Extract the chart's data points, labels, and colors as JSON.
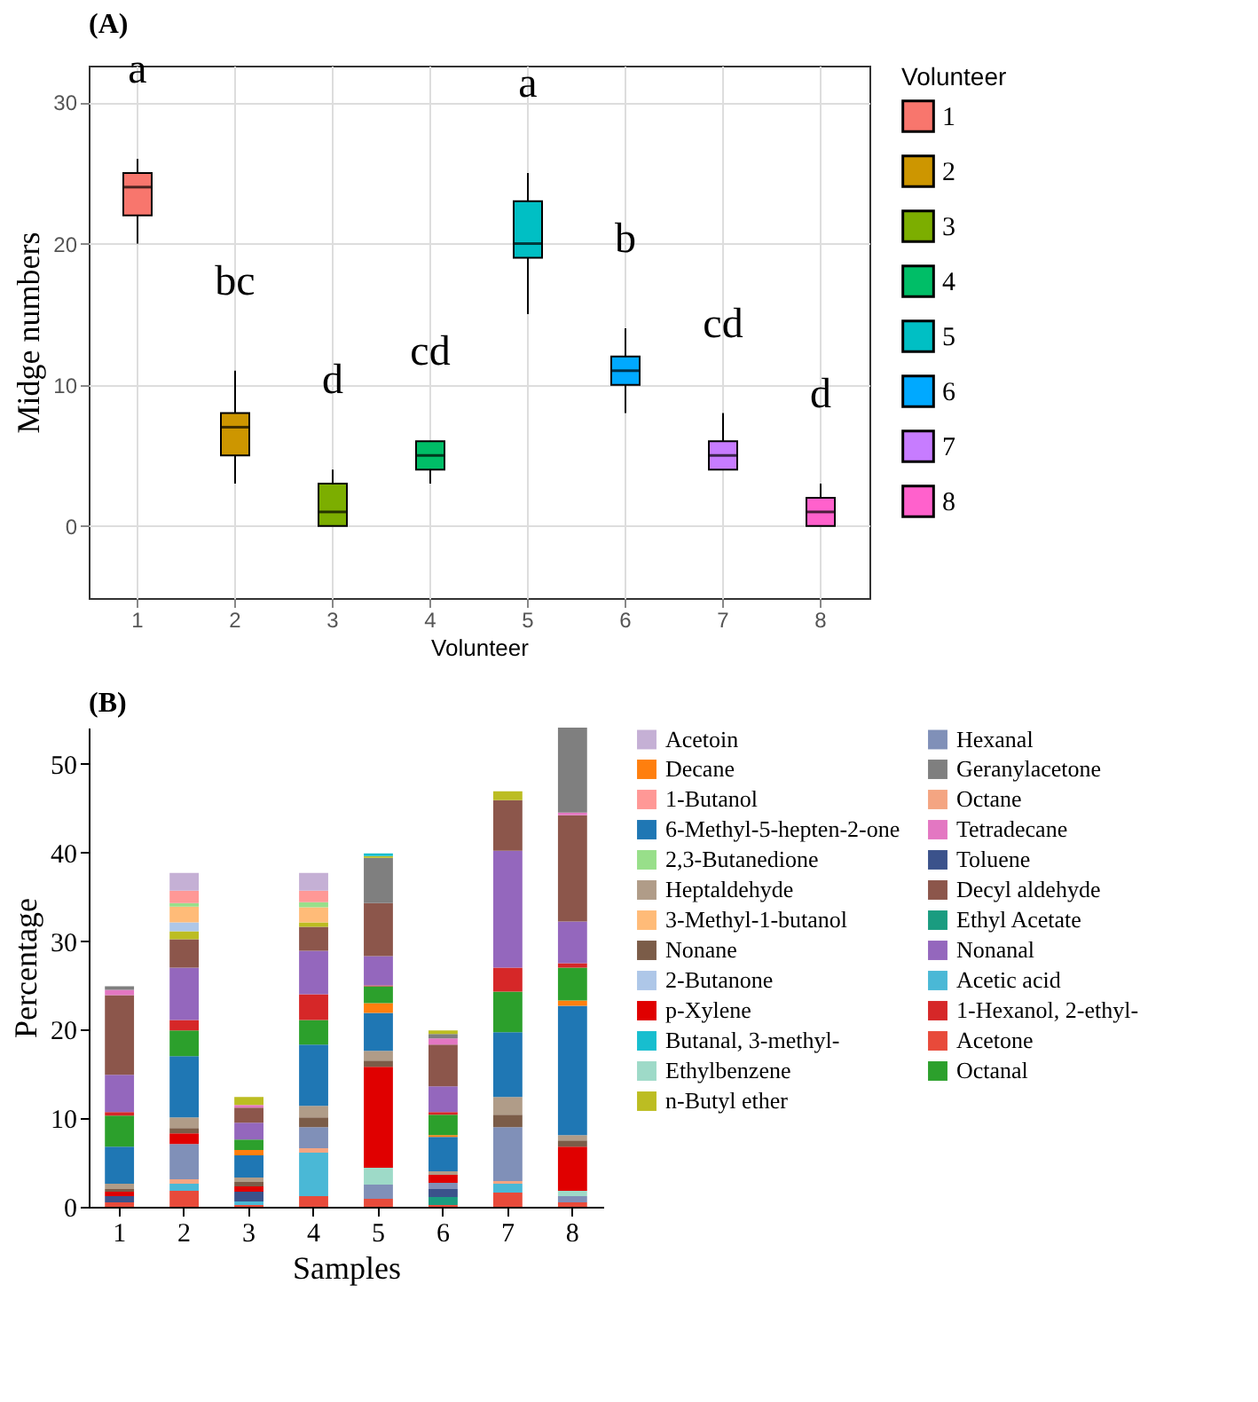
{
  "chart_data": [
    {
      "type": "box",
      "title": "(A)",
      "xlabel": "Volunteer",
      "ylabel": "Midge numbers",
      "legend_title": "Volunteer",
      "legend": "right",
      "grid": true,
      "categories": [
        "1",
        "2",
        "3",
        "4",
        "5",
        "6",
        "7",
        "8"
      ],
      "series": [
        {
          "name": "1",
          "color": "#f8766d",
          "boxes": [
            {
              "low": 20,
              "q1": 22,
              "median": 24,
              "q3": 25,
              "high": 26
            },
            null,
            null,
            null,
            null,
            null,
            null,
            null
          ]
        },
        {
          "name": "2",
          "color": "#cd9600",
          "boxes": [
            null,
            {
              "low": 3,
              "q1": 5,
              "median": 7,
              "q3": 8,
              "high": 11
            },
            null,
            null,
            null,
            null,
            null,
            null
          ]
        },
        {
          "name": "3",
          "color": "#7cae00",
          "boxes": [
            null,
            null,
            {
              "low": 0,
              "q1": 0,
              "median": 1,
              "q3": 3,
              "high": 4
            },
            null,
            null,
            null,
            null,
            null
          ]
        },
        {
          "name": "4",
          "color": "#00be67",
          "boxes": [
            null,
            null,
            null,
            {
              "low": 3,
              "q1": 4,
              "median": 5,
              "q3": 6,
              "high": 6
            },
            null,
            null,
            null,
            null
          ]
        },
        {
          "name": "5",
          "color": "#00bfc4",
          "boxes": [
            null,
            null,
            null,
            null,
            {
              "low": 15,
              "q1": 19,
              "median": 20,
              "q3": 23,
              "high": 25
            },
            null,
            null,
            null
          ]
        },
        {
          "name": "6",
          "color": "#00a9ff",
          "boxes": [
            null,
            null,
            null,
            null,
            null,
            {
              "low": 8,
              "q1": 10,
              "median": 11,
              "q3": 12,
              "high": 14
            },
            null,
            null
          ]
        },
        {
          "name": "7",
          "color": "#c77cff",
          "boxes": [
            null,
            null,
            null,
            null,
            null,
            null,
            {
              "low": 4,
              "q1": 4,
              "median": 5,
              "q3": 6,
              "high": 8
            },
            null
          ]
        },
        {
          "name": "8",
          "color": "#ff61cc",
          "boxes": [
            null,
            null,
            null,
            null,
            null,
            null,
            null,
            {
              "low": 0,
              "q1": 0,
              "median": 1,
              "q3": 2,
              "high": 3
            }
          ]
        }
      ],
      "ylim": [
        -5.1,
        32.6
      ],
      "yticks": [
        0,
        10,
        20,
        30
      ],
      "annotations": [
        "a",
        "bc",
        "d",
        "cd",
        "a",
        "b",
        "cd",
        "d"
      ]
    },
    {
      "type": "bar",
      "title": "(B)",
      "xlabel": "Samples",
      "ylabel": "Percentage",
      "stacked": true,
      "legend": "right",
      "grid": false,
      "categories": [
        "1",
        "2",
        "3",
        "4",
        "5",
        "6",
        "7",
        "8"
      ],
      "ylim": [
        0,
        54.1
      ],
      "yticks": [
        0,
        10,
        20,
        30,
        40,
        50
      ],
      "series": [
        {
          "name": "Acetone",
          "color": "#e84a3a",
          "values": [
            0.5,
            1.8,
            0.2,
            1.2,
            0.9,
            0.2,
            1.6,
            0.5
          ]
        },
        {
          "name": "Acetic acid",
          "color": "#4ab8d6",
          "values": [
            0,
            0.8,
            0.4,
            4.9,
            0,
            0,
            1.0,
            0
          ]
        },
        {
          "name": "Ethyl Acetate",
          "color": "#1a9c80",
          "values": [
            0,
            0,
            0,
            0,
            0,
            0.9,
            0,
            0
          ]
        },
        {
          "name": "Toluene",
          "color": "#3b528b",
          "values": [
            0.7,
            0,
            1.1,
            0,
            0,
            0.9,
            0,
            0
          ]
        },
        {
          "name": "Octane",
          "color": "#f4a582",
          "values": [
            0,
            0.5,
            0,
            0.5,
            0,
            0,
            0.3,
            0
          ]
        },
        {
          "name": "Hexanal",
          "color": "#8090b8",
          "values": [
            0,
            4.0,
            0,
            2.4,
            1.6,
            0.7,
            6.1,
            0.7
          ]
        },
        {
          "name": "Ethylbenzene",
          "color": "#9edac8",
          "values": [
            0,
            0,
            0,
            0,
            1.9,
            0,
            0,
            0.6
          ]
        },
        {
          "name": "p-Xylene",
          "color": "#e00000",
          "values": [
            0.5,
            1.2,
            0.6,
            0,
            11.4,
            0.9,
            0,
            5.0
          ]
        },
        {
          "name": "Nonane",
          "color": "#7b5c48",
          "values": [
            0.3,
            0.6,
            0.5,
            1.1,
            0.7,
            0,
            1.4,
            0.7
          ]
        },
        {
          "name": "Heptaldehyde",
          "color": "#b09c88",
          "values": [
            0.6,
            1.2,
            0.5,
            1.3,
            1.1,
            0.4,
            2.0,
            0.6
          ]
        },
        {
          "name": "6-Methyl-5-hepten-2-one",
          "color": "#1f77b4",
          "values": [
            4.2,
            6.9,
            2.5,
            6.9,
            4.3,
            3.9,
            7.3,
            14.6
          ]
        },
        {
          "name": "Decane",
          "color": "#ff7f0e",
          "values": [
            0,
            0,
            0.6,
            0,
            1.1,
            0.2,
            0,
            0.6
          ]
        },
        {
          "name": "Octanal",
          "color": "#2ca02c",
          "values": [
            3.5,
            2.9,
            1.2,
            2.8,
            1.9,
            2.3,
            4.6,
            3.7
          ]
        },
        {
          "name": "1-Hexanol, 2-ethyl-",
          "color": "#d62728",
          "values": [
            0.4,
            1.2,
            0,
            2.9,
            0.1,
            0.3,
            2.7,
            0.5
          ]
        },
        {
          "name": "Nonanal",
          "color": "#9467bd",
          "values": [
            4.2,
            5.9,
            1.9,
            4.9,
            3.3,
            2.9,
            13.2,
            4.7
          ]
        },
        {
          "name": "Decyl aldehyde",
          "color": "#8c564b",
          "values": [
            9.0,
            3.2,
            1.7,
            2.7,
            6.0,
            4.7,
            5.7,
            12.0
          ]
        },
        {
          "name": "Tetradecane",
          "color": "#e377c2",
          "values": [
            0.6,
            0,
            0.3,
            0,
            0,
            0.7,
            0,
            0.3
          ]
        },
        {
          "name": "Geranylacetone",
          "color": "#7f7f7f",
          "values": [
            0.4,
            0,
            0,
            0,
            5.1,
            0.5,
            0,
            9.6
          ]
        },
        {
          "name": "n-Butyl ether",
          "color": "#bcbd22",
          "values": [
            0,
            0.9,
            0.9,
            0.5,
            0.2,
            0.4,
            1.0,
            0
          ]
        },
        {
          "name": "Butanal, 3-methyl-",
          "color": "#17becf",
          "values": [
            0,
            0,
            0,
            0,
            0.3,
            0,
            0,
            0
          ]
        },
        {
          "name": "2-Butanone",
          "color": "#aec7e8",
          "values": [
            0,
            1.0,
            0,
            0,
            0,
            0,
            0,
            0
          ]
        },
        {
          "name": "3-Methyl-1-butanol",
          "color": "#ffbb78",
          "values": [
            0,
            1.8,
            0,
            1.7,
            0,
            0,
            0,
            0
          ]
        },
        {
          "name": "2,3-Butanedione",
          "color": "#98df8a",
          "values": [
            0,
            0.4,
            0,
            0.6,
            0,
            0,
            0,
            0
          ]
        },
        {
          "name": "1-Butanol",
          "color": "#ff9896",
          "values": [
            0,
            1.4,
            0,
            1.3,
            0,
            0,
            0,
            0
          ]
        },
        {
          "name": "Acetoin",
          "color": "#c5b0d5",
          "values": [
            0,
            2.0,
            0,
            2.0,
            0,
            0,
            0,
            0
          ]
        }
      ]
    }
  ]
}
